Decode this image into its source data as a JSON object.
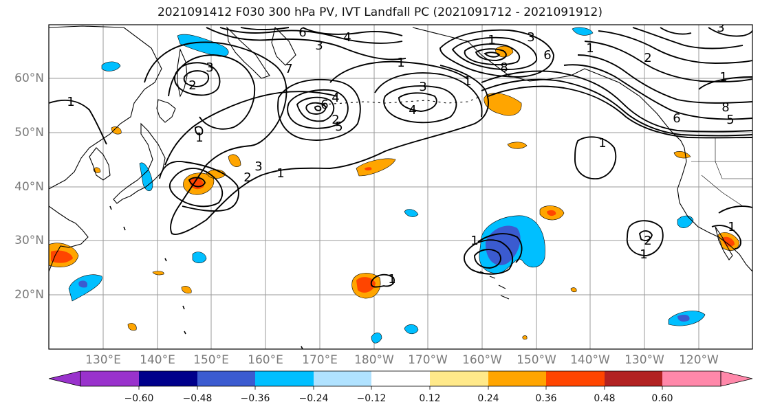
{
  "title": "2021091412 F030 300 hPa PV, IVT Landfall PC (2021091712 - 2021091912)",
  "lat_labels": [
    "60°N",
    "50°N",
    "40°N",
    "30°N",
    "20°N"
  ],
  "lon_labels": [
    "130°E",
    "140°E",
    "150°E",
    "160°E",
    "170°E",
    "180°W",
    "170°W",
    "160°W",
    "150°W",
    "140°W",
    "130°W",
    "120°W"
  ],
  "colorbar": {
    "ticks": [
      "−0.60",
      "−0.48",
      "−0.36",
      "−0.24",
      "−0.12",
      "0.12",
      "0.24",
      "0.36",
      "0.48",
      "0.60"
    ],
    "colors": [
      "#9932cc",
      "#00008b",
      "#3b5bd0",
      "#00bfff",
      "#b0e2ff",
      "#ffffff",
      "#ffe98a",
      "#ffa500",
      "#ff4500",
      "#b22222",
      "#ff88aa"
    ]
  },
  "contour_labels": [
    "6",
    "4",
    "3",
    "1",
    "3",
    "2",
    "7",
    "3",
    "6",
    "1",
    "2",
    "4",
    "8",
    "3",
    "1",
    "1",
    "6",
    "4",
    "5",
    "3",
    "1",
    "2",
    "8",
    "6",
    "5",
    "1",
    "1",
    "3",
    "2",
    "1",
    "1",
    "1",
    "2",
    "1",
    "1",
    "1"
  ],
  "colors": {
    "gridline": "#9a9a9a",
    "coastline": "#000000",
    "contour": "#000000",
    "axis_label": "#7a7a7a"
  }
}
